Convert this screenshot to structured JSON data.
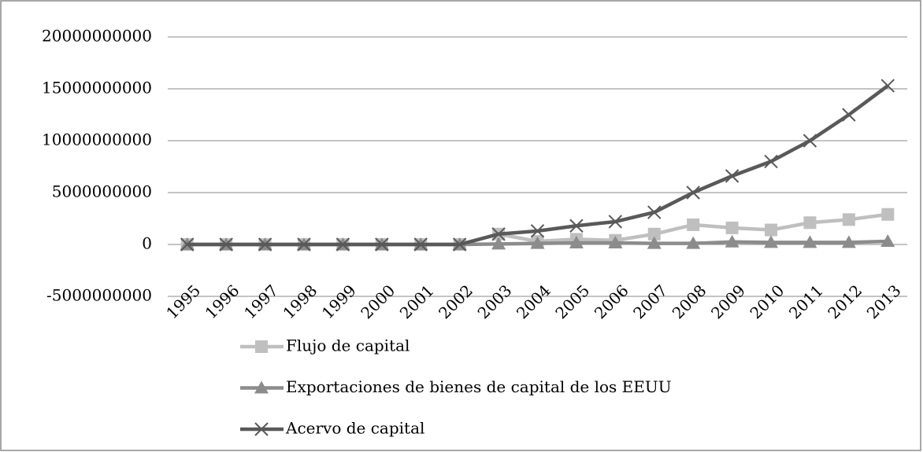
{
  "chart_data": {
    "type": "line",
    "categories": [
      "1995",
      "1996",
      "1997",
      "1998",
      "1999",
      "2000",
      "2001",
      "2002",
      "2003",
      "2004",
      "2005",
      "2006",
      "2007",
      "2008",
      "2009",
      "2010",
      "2011",
      "2012",
      "2013"
    ],
    "series": [
      {
        "name": "Flujo de capital",
        "color": "#bfbfbf",
        "marker": "square",
        "values": [
          0,
          0,
          0,
          0,
          0,
          0,
          0,
          0,
          1000000000,
          300000000,
          500000000,
          400000000,
          1000000000,
          1900000000,
          1600000000,
          1400000000,
          2100000000,
          2400000000,
          2900000000
        ]
      },
      {
        "name": "Exportaciones de bienes de capital de los EEUU",
        "color": "#8c8c8c",
        "marker": "triangle",
        "values": [
          0,
          0,
          0,
          0,
          0,
          0,
          0,
          0,
          50000000,
          100000000,
          150000000,
          150000000,
          100000000,
          100000000,
          250000000,
          200000000,
          200000000,
          200000000,
          300000000
        ]
      },
      {
        "name": "Acervo de capital",
        "color": "#595959",
        "marker": "x",
        "values": [
          0,
          0,
          0,
          0,
          0,
          0,
          0,
          0,
          1000000000,
          1300000000,
          1800000000,
          2200000000,
          3100000000,
          5000000000,
          6600000000,
          8000000000,
          10000000000,
          12500000000,
          15300000000
        ]
      }
    ],
    "ylim": [
      -5000000000,
      20000000000
    ],
    "yticks": [
      -5000000000,
      0,
      5000000000,
      10000000000,
      15000000000,
      20000000000
    ],
    "grid": true,
    "legend": "bottom"
  }
}
